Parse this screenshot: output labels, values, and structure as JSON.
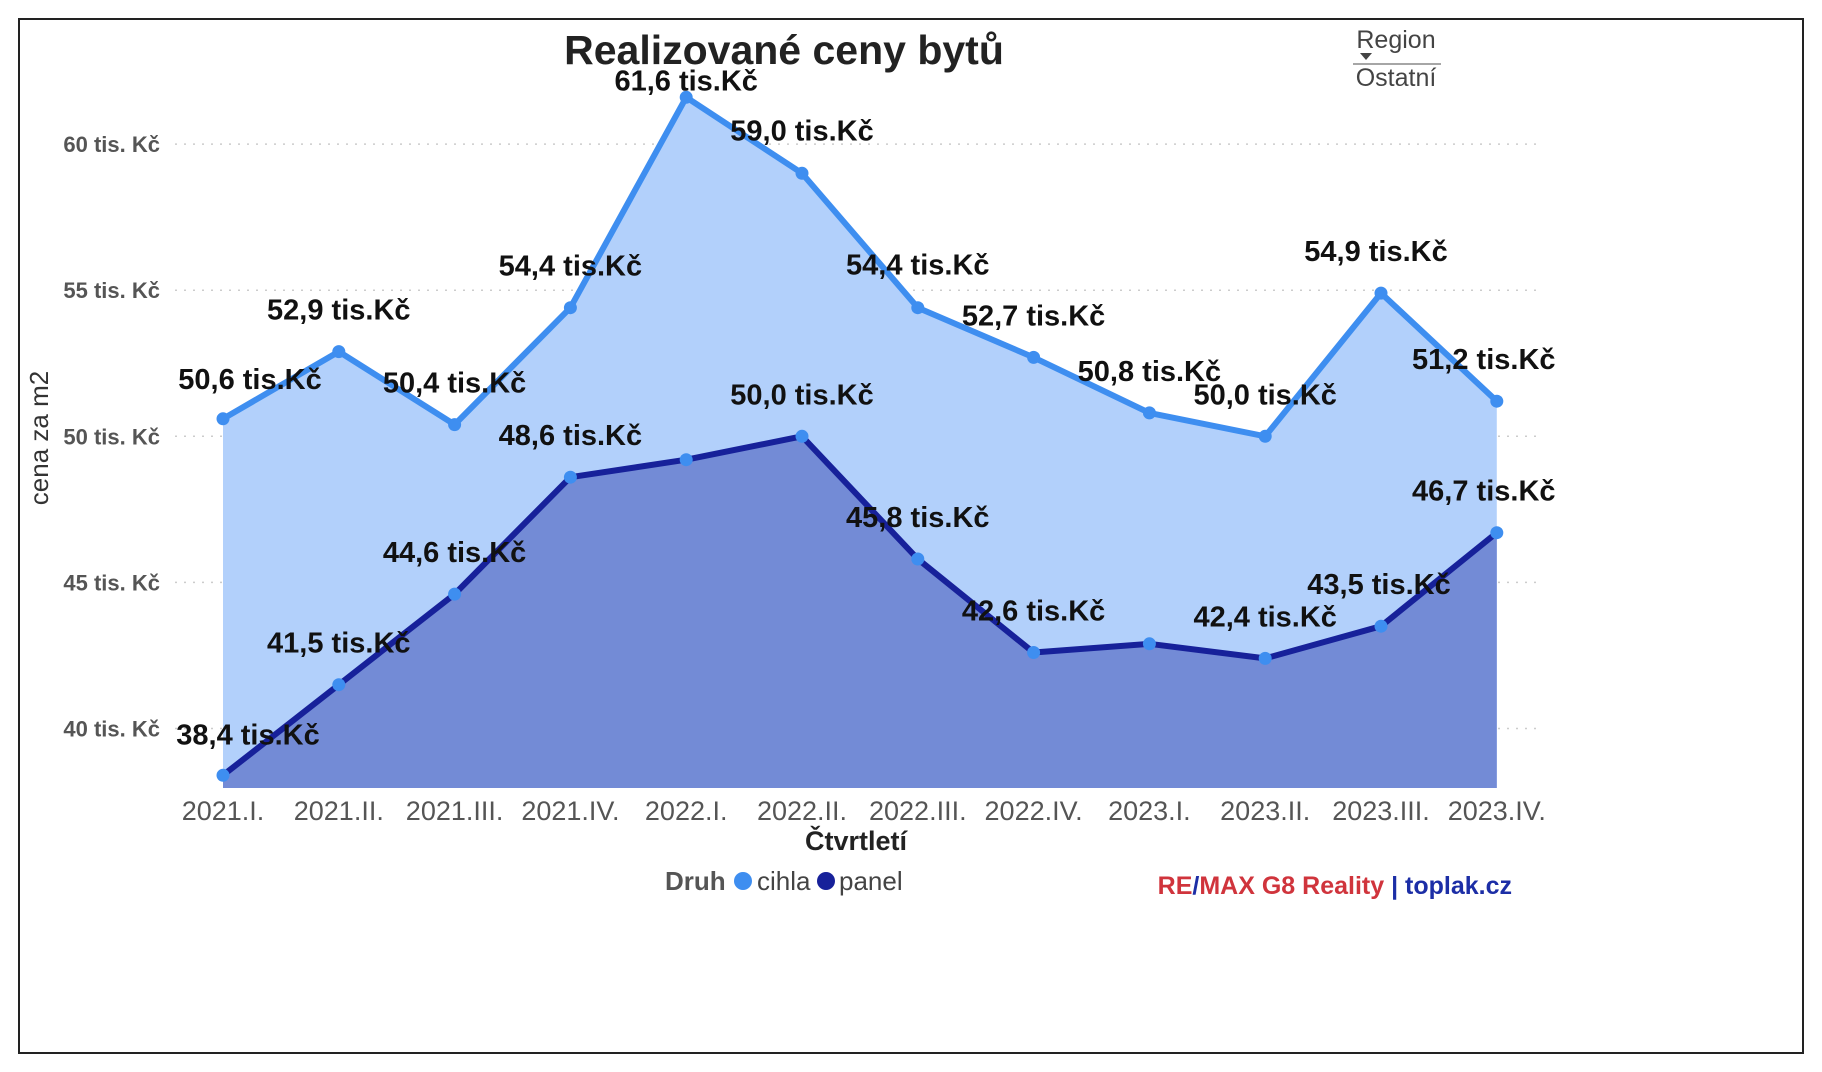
{
  "filter": {
    "label": "Region",
    "value": "Ostatní"
  },
  "brand": {
    "part1": "RE",
    "slash": "/",
    "part2": "MAX G8 Reality",
    "sep": " | ",
    "part3": "toplak.cz"
  },
  "colors": {
    "cihla_line": "#3e8ef0",
    "cihla_fill": "#b2d0fb",
    "panel_line": "#17219a",
    "panel_fill": "#738bd6",
    "grid": "#cccccc",
    "brand_red": "#d0343c",
    "brand_blue": "#1c2ea6"
  },
  "chart_data": {
    "type": "area",
    "title": "Realizované ceny bytů",
    "xlabel": "Čtvrtletí",
    "ylabel": "cena za m2",
    "ylim": [
      37.5,
      63
    ],
    "yticks": [
      40,
      45,
      50,
      55,
      60
    ],
    "ytick_labels": [
      "40 tis. Kč",
      "45 tis. Kč",
      "50 tis. Kč",
      "55 tis. Kč",
      "60 tis. Kč"
    ],
    "grid": true,
    "legend": {
      "title": "Druh",
      "position": "bottom"
    },
    "categories": [
      "2021.I.",
      "2021.II.",
      "2021.III.",
      "2021.IV.",
      "2022.I.",
      "2022.II.",
      "2022.III.",
      "2022.IV.",
      "2023.I.",
      "2023.II.",
      "2023.III.",
      "2023.IV."
    ],
    "series": [
      {
        "name": "cihla",
        "values": [
          50.6,
          52.9,
          50.4,
          54.4,
          61.6,
          59.0,
          54.4,
          52.7,
          50.8,
          50.0,
          54.9,
          51.2
        ],
        "labels": [
          "50,6 tis.Kč",
          "52,9 tis.Kč",
          "50,4 tis.Kč",
          "54,4 tis.Kč",
          "61,6 tis.Kč",
          "59,0 tis.Kč",
          "54,4 tis.Kč",
          "52,7 tis.Kč",
          "50,8 tis.Kč",
          "50,0 tis.Kč",
          "54,9 tis.Kč",
          "51,2 tis.Kč"
        ]
      },
      {
        "name": "panel",
        "values": [
          38.4,
          41.5,
          44.6,
          48.6,
          49.2,
          50.0,
          45.8,
          42.6,
          42.9,
          42.4,
          43.5,
          46.7
        ],
        "labels": [
          "38,4 tis.Kč",
          "41,5 tis.Kč",
          "44,6 tis.Kč",
          "48,6 tis.Kč",
          "",
          "50,0 tis.Kč",
          "45,8 tis.Kč",
          "42,6 tis.Kč",
          "",
          "42,4 tis.Kč",
          "43,5 tis.Kč",
          "46,7 tis.Kč"
        ]
      }
    ]
  }
}
